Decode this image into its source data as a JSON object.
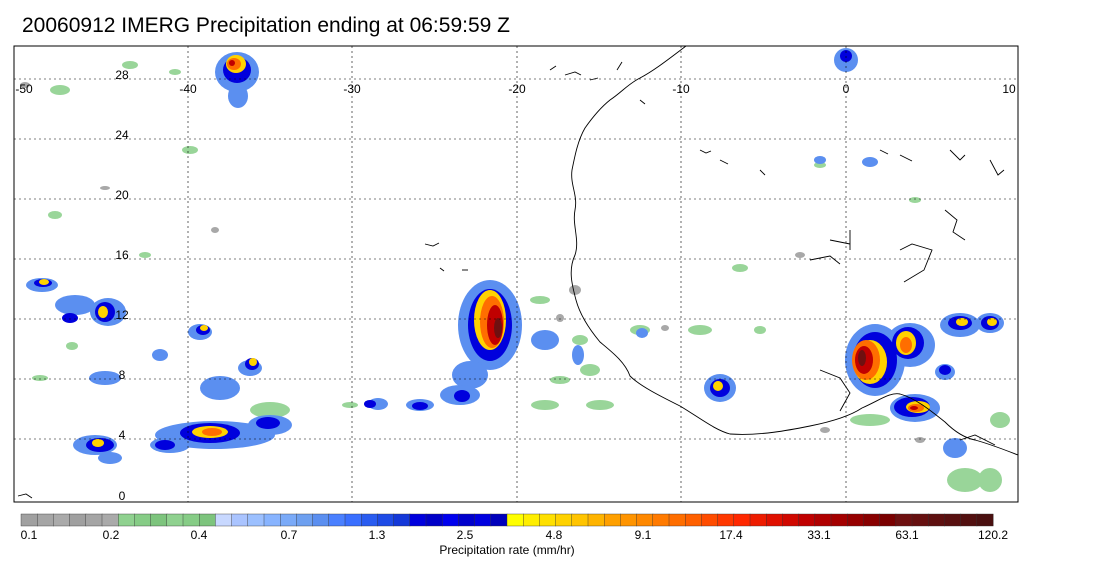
{
  "title": "20060912 IMERG Precipitation ending at 06:59:59 Z",
  "map": {
    "lon_ticks": [
      "-50",
      "-40",
      "-30",
      "-20",
      "-10",
      "0",
      "10"
    ],
    "lat_ticks": [
      "28",
      "24",
      "20",
      "16",
      "12",
      "8",
      "4",
      "0"
    ],
    "lon_range": [
      -50,
      10
    ],
    "lat_range": [
      -1,
      30
    ],
    "gridlines": "dotted",
    "background": "#ffffff",
    "coastline_color": "#000000"
  },
  "colorbar": {
    "label": "Precipitation rate (mm/hr)",
    "tick_labels": [
      "0.1",
      "0.2",
      "0.4",
      "0.7",
      "1.3",
      "2.5",
      "4.8",
      "9.1",
      "17.4",
      "33.1",
      "63.1",
      "120.2"
    ],
    "colors": [
      "#a0a0a0",
      "#a5a5a5",
      "#aaaaaa",
      "#a0a0a0",
      "#a5a5a5",
      "#aaaaaa",
      "#8fd18f",
      "#86cc86",
      "#7dc47d",
      "#8fd18f",
      "#86cc86",
      "#7dc47d",
      "#c8d8ff",
      "#aac4ff",
      "#9cc0ff",
      "#88b4ff",
      "#7aaaf8",
      "#6ea0f0",
      "#5b8ff0",
      "#4a80ff",
      "#3a6fff",
      "#2a5cf0",
      "#1e4be6",
      "#1438d8",
      "#0000dd",
      "#0000c8",
      "#0000ee",
      "#0000cc",
      "#0000e0",
      "#0000bb",
      "#ffff00",
      "#ffee00",
      "#ffe000",
      "#ffd200",
      "#ffc400",
      "#ffb400",
      "#ffa000",
      "#ff9400",
      "#ff8800",
      "#ff7a00",
      "#ff6e00",
      "#ff6000",
      "#ff4c00",
      "#ff3800",
      "#ff2800",
      "#ee1c00",
      "#e01000",
      "#d00800",
      "#c00000",
      "#b00000",
      "#a40000",
      "#960000",
      "#880000",
      "#7a0000",
      "#6e1010",
      "#661010",
      "#5e1010",
      "#581010",
      "#521010",
      "#4a1010"
    ]
  }
}
